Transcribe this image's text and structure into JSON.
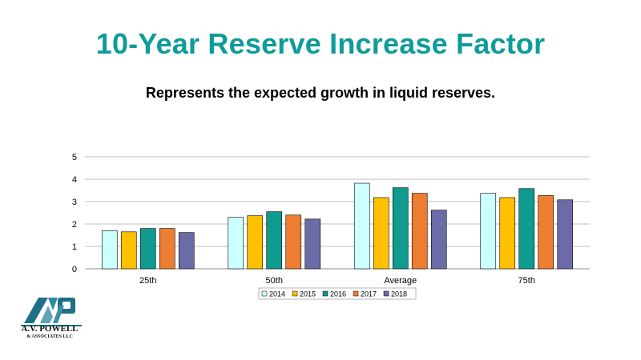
{
  "header": {
    "title": "10-Year Reserve Increase Factor",
    "subtitle": "Represents the expected growth in liquid reserves."
  },
  "logo": {
    "name": "A.V. POWELL",
    "tagline": "& ASSOCIATES LLC",
    "mark_text": "AVP",
    "color": "#1f6f86"
  },
  "chart_data": {
    "type": "bar",
    "categories": [
      "25th",
      "50th",
      "Average",
      "75th"
    ],
    "series": [
      {
        "name": "2014",
        "color": "#ccffff",
        "values": [
          1.7,
          2.3,
          3.82,
          3.37
        ]
      },
      {
        "name": "2015",
        "color": "#ffc000",
        "values": [
          1.65,
          2.37,
          3.18,
          3.18
        ]
      },
      {
        "name": "2016",
        "color": "#0f9b8e",
        "values": [
          1.8,
          2.55,
          3.62,
          3.58
        ]
      },
      {
        "name": "2017",
        "color": "#ed7d31",
        "values": [
          1.8,
          2.4,
          3.37,
          3.27
        ]
      },
      {
        "name": "2018",
        "color": "#6b6ba8",
        "values": [
          1.62,
          2.22,
          2.62,
          3.08
        ]
      }
    ],
    "xlabel": "",
    "ylabel": "",
    "ylim": [
      0,
      5
    ],
    "yticks": [
      0,
      1,
      2,
      3,
      4,
      5
    ],
    "grid": true,
    "legend_position": "bottom"
  }
}
